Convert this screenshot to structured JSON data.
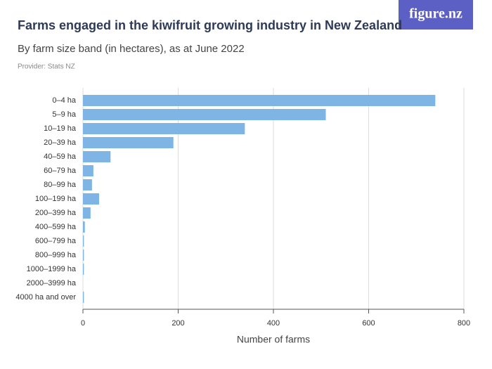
{
  "logo": "figure.nz",
  "chart_data": {
    "type": "hbar",
    "title": "Farms engaged in the kiwifruit growing industry in New Zealand",
    "subtitle": "By farm size band (in hectares), as at June 2022",
    "provider": "Provider: Stats NZ",
    "x_label": "Number of farms",
    "categories": [
      "0–4 ha",
      "5–9 ha",
      "10–19 ha",
      "20–39 ha",
      "40–59 ha",
      "60–79 ha",
      "80–99 ha",
      "100–199 ha",
      "200–399 ha",
      "400–599 ha",
      "600–799 ha",
      "800–999 ha",
      "1000–1999 ha",
      "2000–3999 ha",
      "4000 ha and over"
    ],
    "values": [
      740,
      510,
      340,
      190,
      58,
      22,
      19,
      34,
      16,
      4,
      2,
      2,
      2,
      0,
      2
    ],
    "color": "#7eb5e4",
    "xlim": [
      0,
      800
    ],
    "xticks": [
      0,
      200,
      400,
      600,
      800
    ],
    "grid": true
  }
}
